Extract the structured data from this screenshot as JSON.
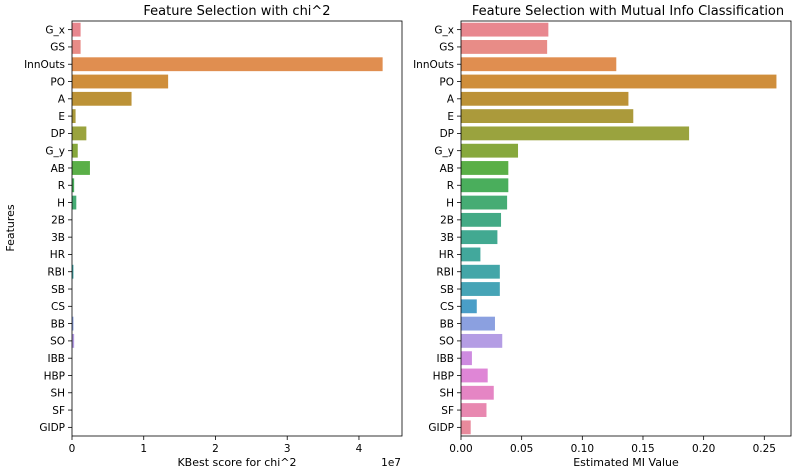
{
  "chart_data": [
    {
      "type": "bar",
      "orientation": "horizontal",
      "title": "Feature Selection with chi^2",
      "xlabel": "KBest score for chi^2",
      "ylabel": "Features",
      "x_offset_label": "1e7",
      "xlim": [
        0,
        4.6
      ],
      "xticks": [
        0,
        1,
        2,
        3,
        4
      ],
      "xtick_labels": [
        "0",
        "1",
        "2",
        "3",
        "4"
      ],
      "x_scale": "×1e7",
      "grid": false,
      "categories": [
        "G_x",
        "GS",
        "InnOuts",
        "PO",
        "A",
        "E",
        "DP",
        "G_y",
        "AB",
        "R",
        "H",
        "2B",
        "3B",
        "HR",
        "RBI",
        "SB",
        "CS",
        "BB",
        "SO",
        "IBB",
        "HBP",
        "SH",
        "SF",
        "GIDP"
      ],
      "values": [
        0.12,
        0.12,
        4.33,
        1.34,
        0.83,
        0.05,
        0.2,
        0.08,
        0.25,
        0.03,
        0.06,
        0.0,
        0.0,
        0.0,
        0.02,
        0.0,
        0.0,
        0.02,
        0.03,
        0.0,
        0.0,
        0.0,
        0.0,
        0.0
      ],
      "colors": [
        "#e8878f",
        "#e88c87",
        "#e08e50",
        "#cf8e3b",
        "#bc9237",
        "#ab9a3b",
        "#9aa33e",
        "#87a83c",
        "#5aaf47",
        "#4aae5c",
        "#46ac74",
        "#43aa85",
        "#42a991",
        "#42a89c",
        "#43a6a8",
        "#46a4b6",
        "#4a9ec7",
        "#8ba0e0",
        "#b49de4",
        "#ce8be0",
        "#df86d6",
        "#e585c4",
        "#e888b0",
        "#e88a9c"
      ]
    },
    {
      "type": "bar",
      "orientation": "horizontal",
      "title": "Feature Selection with Mutual Info Classification",
      "xlabel": "Estimated MI Value",
      "xlim": [
        0,
        0.272
      ],
      "xticks": [
        0,
        0.05,
        0.1,
        0.15,
        0.2,
        0.25
      ],
      "xtick_labels": [
        "0.00",
        "0.05",
        "0.10",
        "0.15",
        "0.20",
        "0.25"
      ],
      "grid": false,
      "categories": [
        "G_x",
        "GS",
        "InnOuts",
        "PO",
        "A",
        "E",
        "DP",
        "G_y",
        "AB",
        "R",
        "H",
        "2B",
        "3B",
        "HR",
        "RBI",
        "SB",
        "CS",
        "BB",
        "SO",
        "IBB",
        "HBP",
        "SH",
        "SF",
        "GIDP"
      ],
      "values": [
        0.072,
        0.071,
        0.128,
        0.26,
        0.138,
        0.142,
        0.188,
        0.047,
        0.039,
        0.039,
        0.038,
        0.033,
        0.03,
        0.016,
        0.032,
        0.032,
        0.013,
        0.028,
        0.034,
        0.009,
        0.022,
        0.027,
        0.021,
        0.008
      ],
      "colors": [
        "#e8878f",
        "#e88c87",
        "#e08e50",
        "#cf8e3b",
        "#bc9237",
        "#ab9a3b",
        "#9aa33e",
        "#87a83c",
        "#5aaf47",
        "#4aae5c",
        "#46ac74",
        "#43aa85",
        "#42a991",
        "#42a89c",
        "#43a6a8",
        "#46a4b6",
        "#4a9ec7",
        "#8ba0e0",
        "#b49de4",
        "#ce8be0",
        "#df86d6",
        "#e585c4",
        "#e888b0",
        "#e88a9c"
      ]
    }
  ]
}
